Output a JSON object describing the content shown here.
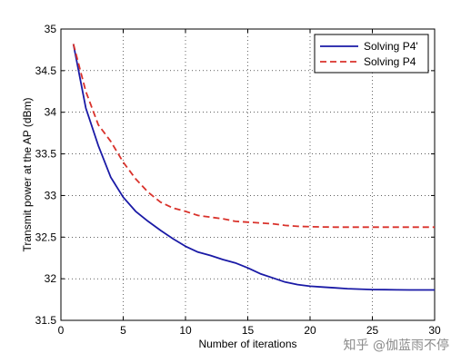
{
  "chart_data": {
    "type": "line",
    "title": "",
    "xlabel": "Number of iterations",
    "ylabel": "Transmit power at the AP (dBm)",
    "xlim": [
      0,
      30
    ],
    "ylim": [
      31.5,
      35
    ],
    "xticks": [
      0,
      5,
      10,
      15,
      20,
      25,
      30
    ],
    "yticks": [
      31.5,
      32,
      32.5,
      33,
      33.5,
      34,
      34.5,
      35
    ],
    "grid": true,
    "legend_position": "top-right",
    "series": [
      {
        "name": "Solving P4'",
        "color": "#1a1aa6",
        "style": "solid",
        "x": [
          1,
          2,
          3,
          4,
          5,
          6,
          7,
          8,
          9,
          10,
          11,
          12,
          13,
          14,
          15,
          16,
          17,
          18,
          19,
          20,
          21,
          22,
          23,
          24,
          25,
          26,
          27,
          28,
          29,
          30
        ],
        "values": [
          34.82,
          34.05,
          33.6,
          33.22,
          32.98,
          32.81,
          32.69,
          32.58,
          32.48,
          32.39,
          32.32,
          32.28,
          32.23,
          32.19,
          32.13,
          32.06,
          32.01,
          31.96,
          31.93,
          31.91,
          31.9,
          31.89,
          31.88,
          31.875,
          31.87,
          31.868,
          31.866,
          31.865,
          31.865,
          31.865
        ]
      },
      {
        "name": "Solving P4",
        "color": "#d9322b",
        "style": "dashed",
        "x": [
          1,
          2,
          3,
          4,
          5,
          6,
          7,
          8,
          9,
          10,
          11,
          12,
          13,
          14,
          15,
          16,
          17,
          18,
          19,
          20,
          21,
          22,
          23,
          24,
          25,
          26,
          27,
          28,
          29,
          30
        ],
        "values": [
          34.82,
          34.25,
          33.85,
          33.65,
          33.4,
          33.2,
          33.04,
          32.92,
          32.85,
          32.81,
          32.76,
          32.74,
          32.72,
          32.69,
          32.68,
          32.67,
          32.66,
          32.64,
          32.63,
          32.625,
          32.622,
          32.62,
          32.62,
          32.62,
          32.62,
          32.62,
          32.62,
          32.62,
          32.62,
          32.62
        ]
      }
    ]
  },
  "watermark": "知乎 @伽蓝雨不停"
}
